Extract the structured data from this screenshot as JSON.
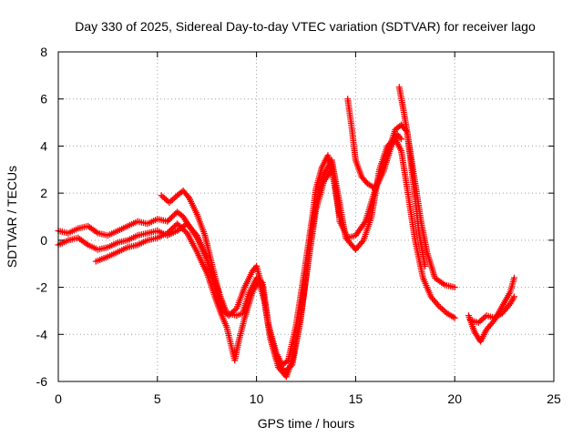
{
  "chart_data": {
    "type": "scatter",
    "title": "Day 330 of 2025, Sidereal Day-to-day VTEC variation (SDTVAR) for receiver lago",
    "xlabel": "GPS time / hours",
    "ylabel": "SDTVAR / TECUs",
    "xlim": [
      0,
      25
    ],
    "ylim": [
      -6,
      8
    ],
    "xticks": [
      0,
      5,
      10,
      15,
      20,
      25
    ],
    "yticks": [
      -6,
      -4,
      -2,
      0,
      2,
      4,
      6,
      8
    ],
    "grid": true,
    "marker": "+",
    "series": [
      {
        "name": "track-1",
        "color": "#ff0000",
        "x": [
          0.0,
          0.5,
          1.0,
          1.5,
          2.0,
          2.5,
          3.0,
          3.5,
          4.0,
          4.5,
          5.0,
          5.5,
          6.0,
          6.3,
          6.6,
          7.0,
          7.5,
          8.0,
          8.3,
          8.6,
          9.0,
          9.4,
          9.8,
          10.0,
          10.3,
          10.6,
          11.0,
          11.3,
          11.6,
          12.0,
          12.4,
          12.8,
          13.0,
          13.3,
          13.6,
          13.9,
          14.2,
          14.6,
          15.0,
          15.5,
          16.0,
          16.5,
          17.0,
          17.3,
          17.6,
          17.9,
          18.3,
          18.6,
          19.0,
          19.5,
          20.0
        ],
        "y": [
          0.4,
          0.3,
          0.5,
          0.6,
          0.3,
          0.2,
          0.4,
          0.6,
          0.8,
          0.7,
          0.9,
          0.8,
          1.2,
          1.0,
          0.6,
          0.1,
          -0.8,
          -2.3,
          -3.0,
          -3.2,
          -2.9,
          -2.0,
          -1.3,
          -1.1,
          -2.0,
          -3.6,
          -4.8,
          -5.3,
          -5.1,
          -3.6,
          -1.4,
          0.9,
          2.2,
          3.1,
          3.6,
          2.9,
          0.8,
          0.1,
          0.2,
          0.8,
          2.2,
          3.4,
          4.7,
          4.9,
          4.6,
          3.0,
          0.8,
          -0.5,
          -1.6,
          -1.9,
          -2.0
        ]
      },
      {
        "name": "track-2",
        "color": "#ff0000",
        "x": [
          0.0,
          0.5,
          1.0,
          1.5,
          2.0,
          2.5,
          3.0,
          3.5,
          4.0,
          4.5,
          5.0,
          5.5,
          6.0,
          6.5,
          7.0,
          7.5,
          8.0,
          8.5,
          9.0,
          9.3,
          9.6,
          10.0,
          10.3,
          10.6,
          11.0,
          11.4,
          11.8,
          12.2,
          12.6,
          13.0,
          13.4,
          13.8,
          14.1,
          14.5,
          15.0,
          15.4,
          15.8,
          16.2,
          16.6,
          17.0,
          17.3,
          17.6,
          18.0,
          18.4,
          18.8,
          19.2,
          19.6,
          20.0
        ],
        "y": [
          -0.2,
          0.0,
          0.1,
          -0.2,
          -0.4,
          -0.3,
          -0.1,
          0.0,
          0.2,
          0.3,
          0.4,
          0.2,
          0.4,
          0.7,
          0.2,
          -0.8,
          -2.0,
          -3.1,
          -3.2,
          -3.1,
          -2.3,
          -1.6,
          -1.8,
          -3.6,
          -5.0,
          -5.6,
          -5.3,
          -3.5,
          -0.9,
          1.6,
          2.8,
          3.4,
          2.0,
          0.1,
          -0.4,
          0.0,
          1.0,
          3.0,
          4.0,
          4.3,
          3.8,
          2.2,
          0.0,
          -1.6,
          -2.4,
          -2.8,
          -3.1,
          -3.3
        ]
      },
      {
        "name": "track-3",
        "color": "#ff0000",
        "x": [
          1.9,
          2.5,
          3.0,
          3.5,
          4.0,
          4.5,
          5.0,
          5.5,
          6.0,
          6.5,
          7.0,
          7.5,
          7.9,
          8.2,
          8.5,
          8.7,
          8.9,
          9.1,
          9.4,
          9.8,
          10.1,
          10.4,
          10.7,
          11.1,
          11.5,
          11.8,
          12.2,
          12.6,
          13.0,
          13.4,
          13.8,
          14.2
        ],
        "y": [
          -0.9,
          -0.7,
          -0.5,
          -0.3,
          -0.2,
          0.0,
          0.1,
          0.3,
          0.7,
          0.3,
          -0.5,
          -1.4,
          -2.4,
          -3.1,
          -3.7,
          -4.4,
          -5.1,
          -4.3,
          -3.3,
          -2.2,
          -1.7,
          -2.6,
          -4.2,
          -5.4,
          -5.8,
          -5.1,
          -3.4,
          -1.0,
          1.3,
          2.5,
          3.0,
          1.0
        ]
      },
      {
        "name": "track-4",
        "color": "#ff0000",
        "x": [
          5.2,
          5.6,
          6.0,
          6.3,
          6.6,
          7.0,
          7.4,
          7.8,
          8.1
        ],
        "y": [
          1.9,
          1.6,
          1.9,
          2.1,
          1.8,
          1.1,
          0.2,
          -1.2,
          -2.2
        ]
      },
      {
        "name": "track-5",
        "color": "#ff0000",
        "x": [
          14.6,
          14.8,
          15.0,
          15.3,
          15.6,
          16.0,
          16.4,
          16.8,
          17.1,
          17.3
        ],
        "y": [
          6.0,
          4.8,
          3.4,
          2.7,
          2.4,
          2.2,
          2.9,
          4.0,
          4.5,
          4.3
        ]
      },
      {
        "name": "track-6",
        "color": "#ff0000",
        "x": [
          17.2,
          17.4,
          17.6,
          17.8,
          18.0,
          18.2,
          18.5
        ],
        "y": [
          6.5,
          5.6,
          4.6,
          3.2,
          1.8,
          0.3,
          -1.1
        ]
      },
      {
        "name": "track-7",
        "color": "#ff0000",
        "x": [
          20.7,
          21.0,
          21.3,
          21.6,
          22.0,
          22.4,
          22.8,
          23.0
        ],
        "y": [
          -3.2,
          -3.9,
          -4.3,
          -3.8,
          -3.4,
          -2.8,
          -2.2,
          -1.6
        ]
      },
      {
        "name": "track-8",
        "color": "#ff0000",
        "x": [
          20.8,
          21.2,
          21.6,
          22.0,
          22.4,
          22.8,
          23.0
        ],
        "y": [
          -3.4,
          -3.5,
          -3.2,
          -3.3,
          -3.1,
          -2.7,
          -2.4
        ]
      }
    ]
  }
}
